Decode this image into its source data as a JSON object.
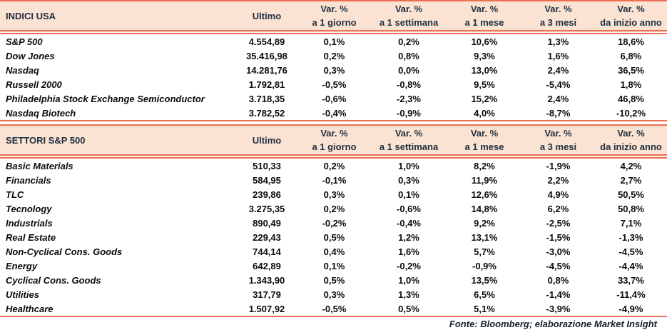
{
  "colors": {
    "header_bg": "#fbe3d4",
    "accent_line": "#ee6e52",
    "header_text": "#1f2e3e",
    "body_text": "#0b0b0b"
  },
  "tables": [
    {
      "title": "INDICI USA",
      "ultimo_label": "Ultimo",
      "columns": [
        {
          "line1": "Var. %",
          "line2": "a 1 giorno"
        },
        {
          "line1": "Var. %",
          "line2": "a 1 settimana"
        },
        {
          "line1": "Var. %",
          "line2": "a 1 mese"
        },
        {
          "line1": "Var. %",
          "line2": "a 3 mesi"
        },
        {
          "line1": "Var. %",
          "line2": "da inizio anno"
        }
      ],
      "rows": [
        {
          "name": "S&P 500",
          "ultimo": "4.554,89",
          "values": [
            "0,1%",
            "0,2%",
            "10,6%",
            "1,3%",
            "18,6%"
          ]
        },
        {
          "name": "Dow Jones",
          "ultimo": "35.416,98",
          "values": [
            "0,2%",
            "0,8%",
            "9,3%",
            "1,6%",
            "6,8%"
          ]
        },
        {
          "name": "Nasdaq",
          "ultimo": "14.281,76",
          "values": [
            "0,3%",
            "0,0%",
            "13,0%",
            "2,4%",
            "36,5%"
          ]
        },
        {
          "name": "Russell 2000",
          "ultimo": "1.792,81",
          "values": [
            "-0,5%",
            "-0,8%",
            "9,5%",
            "-5,4%",
            "1,8%"
          ]
        },
        {
          "name": "Philadelphia Stock Exchange Semiconductor",
          "ultimo": "3.718,35",
          "values": [
            "-0,6%",
            "-2,3%",
            "15,2%",
            "2,4%",
            "46,8%"
          ]
        },
        {
          "name": "Nasdaq Biotech",
          "ultimo": "3.782,52",
          "values": [
            "-0,4%",
            "-0,9%",
            "4,0%",
            "-8,7%",
            "-10,2%"
          ]
        }
      ]
    },
    {
      "title": "SETTORI S&P 500",
      "ultimo_label": "Ultimo",
      "columns": [
        {
          "line1": "Var. %",
          "line2": "a 1 giorno"
        },
        {
          "line1": "Var. %",
          "line2": "a 1 settimana"
        },
        {
          "line1": "Var. %",
          "line2": "a 1 mese"
        },
        {
          "line1": "Var. %",
          "line2": "a 3 mesi"
        },
        {
          "line1": "Var. %",
          "line2": "da inizio anno"
        }
      ],
      "rows": [
        {
          "name": "Basic Materials",
          "ultimo": "510,33",
          "values": [
            "0,2%",
            "1,0%",
            "8,2%",
            "-1,9%",
            "4,2%"
          ]
        },
        {
          "name": "Financials",
          "ultimo": "584,95",
          "values": [
            "-0,1%",
            "0,3%",
            "11,9%",
            "2,2%",
            "2,7%"
          ]
        },
        {
          "name": "TLC",
          "ultimo": "239,86",
          "values": [
            "0,3%",
            "0,1%",
            "12,6%",
            "4,9%",
            "50,5%"
          ]
        },
        {
          "name": "Tecnology",
          "ultimo": "3.275,35",
          "values": [
            "0,2%",
            "-0,6%",
            "14,8%",
            "6,2%",
            "50,8%"
          ]
        },
        {
          "name": "Industrials",
          "ultimo": "890,49",
          "values": [
            "-0,2%",
            "-0,4%",
            "9,2%",
            "-2,5%",
            "7,1%"
          ]
        },
        {
          "name": "Real Estate",
          "ultimo": "229,43",
          "values": [
            "0,5%",
            "1,2%",
            "13,1%",
            "-1,5%",
            "-1,3%"
          ]
        },
        {
          "name": "Non-Cyclical Cons. Goods",
          "ultimo": "744,14",
          "values": [
            "0,4%",
            "1,6%",
            "5,7%",
            "-3,0%",
            "-4,5%"
          ]
        },
        {
          "name": "Energy",
          "ultimo": "642,89",
          "values": [
            "0,1%",
            "-0,2%",
            "-0,9%",
            "-4,5%",
            "-4,4%"
          ]
        },
        {
          "name": "Cyclical Cons. Goods",
          "ultimo": "1.343,90",
          "values": [
            "0,5%",
            "1,0%",
            "13,5%",
            "0,8%",
            "33,7%"
          ]
        },
        {
          "name": "Utilities",
          "ultimo": "317,79",
          "values": [
            "0,3%",
            "1,3%",
            "6,5%",
            "-1,4%",
            "-11,4%"
          ]
        },
        {
          "name": "Healthcare",
          "ultimo": "1.507,92",
          "values": [
            "-0,5%",
            "0,5%",
            "5,1%",
            "-3,9%",
            "-4,9%"
          ]
        }
      ]
    }
  ],
  "footer": {
    "source_note": "Fonte: Bloomberg; elaborazione Market Insight"
  }
}
